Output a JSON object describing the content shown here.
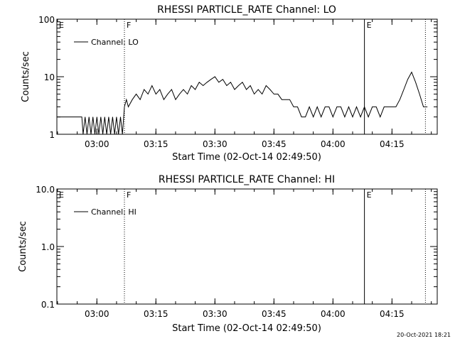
{
  "footer": {
    "timestamp": "20-Oct-2021 18:21"
  },
  "chart_data": [
    {
      "type": "line",
      "title": "RHESSI PARTICLE_RATE Channel: LO",
      "xlabel": "Start Time (02-Oct-14 02:49:50)",
      "ylabel": "Counts/sec",
      "yscale": "log",
      "xlim": [
        "02:49:50",
        "04:26:30"
      ],
      "ylim": [
        1,
        100
      ],
      "xticks": [
        "03:00",
        "03:15",
        "03:30",
        "03:45",
        "04:00",
        "04:15"
      ],
      "yticks": [
        {
          "value": 1,
          "label": "1"
        },
        {
          "value": 10,
          "label": "10"
        },
        {
          "value": 100,
          "label": "100"
        }
      ],
      "legend": {
        "position": "top-left"
      },
      "markers": [
        {
          "label": "E",
          "x": "02:49:50",
          "style": "none"
        },
        {
          "label": "F",
          "x": "03:07:00",
          "style": "dotted"
        },
        {
          "label": "E",
          "x": "04:08:00",
          "style": "solid"
        },
        {
          "label": "",
          "x": "04:23:30",
          "style": "dotted"
        }
      ],
      "series": [
        {
          "name": "Channel: LO",
          "x": [
            "02:49:50",
            "02:56:10",
            "02:56:30",
            "02:57:00",
            "02:57:30",
            "02:58:00",
            "02:58:30",
            "02:59:00",
            "02:59:30",
            "03:00:00",
            "03:00:30",
            "03:01:00",
            "03:01:30",
            "03:02:00",
            "03:02:30",
            "03:03:00",
            "03:03:30",
            "03:04:00",
            "03:04:30",
            "03:05:00",
            "03:05:30",
            "03:06:00",
            "03:06:30",
            "03:07:00",
            "03:07:30",
            "03:08:00",
            "03:09:00",
            "03:10:00",
            "03:11:00",
            "03:12:00",
            "03:13:00",
            "03:14:00",
            "03:15:00",
            "03:16:00",
            "03:17:00",
            "03:18:00",
            "03:19:00",
            "03:20:00",
            "03:21:00",
            "03:22:00",
            "03:23:00",
            "03:24:00",
            "03:25:00",
            "03:26:00",
            "03:27:00",
            "03:28:00",
            "03:29:00",
            "03:30:00",
            "03:31:00",
            "03:32:00",
            "03:33:00",
            "03:34:00",
            "03:35:00",
            "03:36:00",
            "03:37:00",
            "03:38:00",
            "03:39:00",
            "03:40:00",
            "03:41:00",
            "03:42:00",
            "03:43:00",
            "03:44:00",
            "03:45:00",
            "03:46:00",
            "03:47:00",
            "03:48:00",
            "03:49:00",
            "03:50:00",
            "03:51:00",
            "03:52:00",
            "03:53:00",
            "03:54:00",
            "03:55:00",
            "03:56:00",
            "03:57:00",
            "03:58:00",
            "03:59:00",
            "04:00:00",
            "04:01:00",
            "04:02:00",
            "04:03:00",
            "04:04:00",
            "04:05:00",
            "04:06:00",
            "04:07:00",
            "04:08:00",
            "04:09:00",
            "04:10:00",
            "04:11:00",
            "04:12:00",
            "04:13:00",
            "04:14:00",
            "04:15:00",
            "04:16:00",
            "04:17:00",
            "04:18:00",
            "04:19:00",
            "04:20:00",
            "04:21:00",
            "04:22:00",
            "04:23:00",
            "04:24:00"
          ],
          "y": [
            2,
            2,
            1,
            2,
            1,
            2,
            1,
            2,
            1,
            2,
            1,
            2,
            1,
            2,
            1,
            2,
            1,
            2,
            1,
            2,
            1,
            2,
            1,
            3,
            4,
            3,
            4,
            5,
            4,
            6,
            5,
            7,
            5,
            6,
            4,
            5,
            6,
            4,
            5,
            6,
            5,
            7,
            6,
            8,
            7,
            8,
            9,
            10,
            8,
            9,
            7,
            8,
            6,
            7,
            8,
            6,
            7,
            5,
            6,
            5,
            7,
            6,
            5,
            5,
            4,
            4,
            4,
            3,
            3,
            2,
            2,
            3,
            2,
            3,
            2,
            3,
            3,
            2,
            3,
            3,
            2,
            3,
            2,
            3,
            2,
            3,
            2,
            3,
            3,
            2,
            3,
            3,
            3,
            3,
            4,
            6,
            9,
            12,
            8,
            5,
            3,
            3
          ]
        }
      ]
    },
    {
      "type": "line",
      "title": "RHESSI PARTICLE_RATE Channel: HI",
      "xlabel": "Start Time (02-Oct-14 02:49:50)",
      "ylabel": "Counts/sec",
      "yscale": "log",
      "xlim": [
        "02:49:50",
        "04:26:30"
      ],
      "ylim": [
        0.1,
        10
      ],
      "xticks": [
        "03:00",
        "03:15",
        "03:30",
        "03:45",
        "04:00",
        "04:15"
      ],
      "yticks": [
        {
          "value": 0.1,
          "label": "0.1"
        },
        {
          "value": 1,
          "label": "1.0"
        },
        {
          "value": 10,
          "label": "10.0"
        }
      ],
      "legend": {
        "position": "top-left"
      },
      "markers": [
        {
          "label": "E",
          "x": "02:49:50",
          "style": "none"
        },
        {
          "label": "F",
          "x": "03:07:00",
          "style": "dotted"
        },
        {
          "label": "E",
          "x": "04:08:00",
          "style": "solid"
        },
        {
          "label": "",
          "x": "04:23:30",
          "style": "dotted"
        }
      ],
      "series": [
        {
          "name": "Channel: HI",
          "x": [],
          "y": []
        }
      ]
    }
  ]
}
